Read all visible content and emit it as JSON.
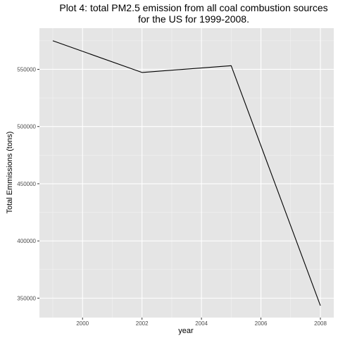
{
  "chart_data": {
    "type": "line",
    "title_line1": "Plot 4: total PM2.5 emission from all coal combustion sources",
    "title_line2": "for the US for 1999-2008.",
    "xlabel": "year",
    "ylabel": "Total Emmissions (tons)",
    "x": [
      1999,
      2002,
      2005,
      2008
    ],
    "values": [
      575000,
      547300,
      553200,
      343400
    ],
    "xlim": [
      1998.55,
      2008.45
    ],
    "ylim": [
      333000,
      586000
    ],
    "x_ticks": [
      2000,
      2002,
      2004,
      2006,
      2008
    ],
    "x_tick_labels": [
      "2000",
      "2002",
      "2004",
      "2006",
      "2008"
    ],
    "y_ticks": [
      350000,
      400000,
      450000,
      500000,
      550000
    ],
    "y_tick_labels": [
      "350000",
      "400000",
      "450000",
      "500000",
      "550000"
    ],
    "grid": true,
    "colors": {
      "panel_background": "#e5e5e5",
      "grid_major": "#ffffff",
      "grid_minor": "#f2f2f2",
      "line": "#000000",
      "tick_text": "#4d4d4d",
      "tick_mark": "#333333"
    }
  }
}
